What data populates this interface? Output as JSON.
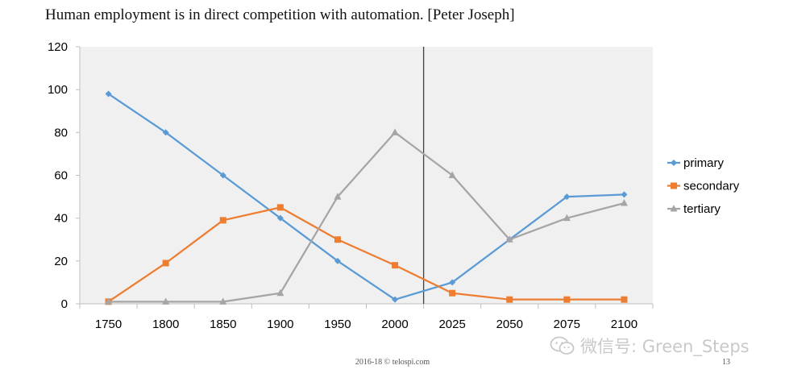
{
  "title": "Human employment is in direct competition with automation. [Peter Joseph]",
  "footer": "2016-18 © telospi.com",
  "page_number": "13",
  "watermark": {
    "icon": "wechat-icon",
    "text": "微信号: Green_Steps"
  },
  "colors": {
    "primary": "#5b9bd5",
    "secondary": "#ed7d31",
    "tertiary": "#a5a5a5",
    "plot_bg": "#f0f0f0"
  },
  "chart_data": {
    "type": "line",
    "title": "",
    "xlabel": "",
    "ylabel": "",
    "categories": [
      "1750",
      "1800",
      "1850",
      "1900",
      "1950",
      "2000",
      "2025",
      "2050",
      "2075",
      "2100"
    ],
    "ylim": [
      0,
      120
    ],
    "yticks": [
      0,
      20,
      40,
      60,
      80,
      100,
      120
    ],
    "grid": false,
    "legend": "right",
    "vertical_marker": "between 2000 and 2025",
    "series": [
      {
        "name": "primary",
        "marker": "diamond",
        "color": "#5b9bd5",
        "values": [
          98,
          80,
          60,
          40,
          20,
          2,
          10,
          30,
          50,
          51
        ]
      },
      {
        "name": "secondary",
        "marker": "square",
        "color": "#ed7d31",
        "values": [
          1,
          19,
          39,
          45,
          30,
          18,
          5,
          2,
          2,
          2
        ]
      },
      {
        "name": "tertiary",
        "marker": "triangle",
        "color": "#a5a5a5",
        "values": [
          1,
          1,
          1,
          5,
          50,
          80,
          60,
          30,
          40,
          47
        ]
      }
    ]
  }
}
